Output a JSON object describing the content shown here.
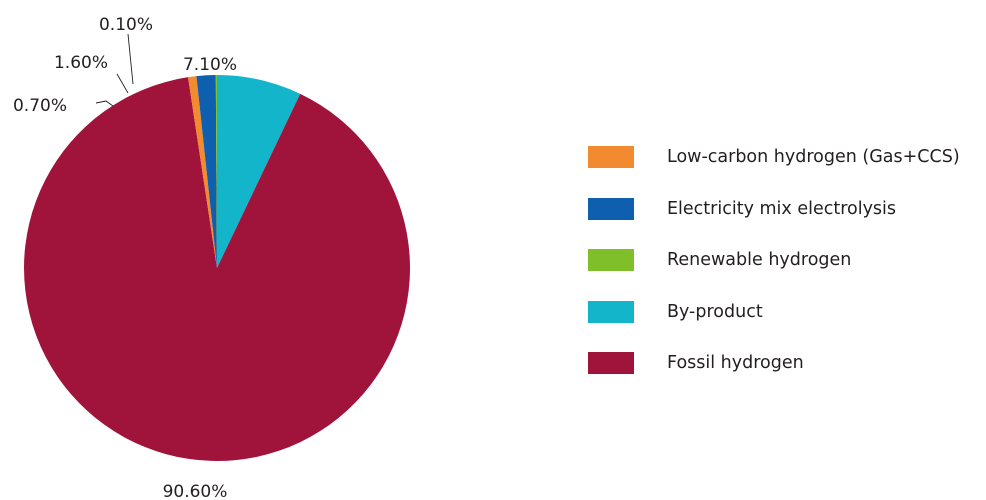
{
  "chart_data": {
    "type": "pie",
    "slices": [
      {
        "label": "By-product",
        "value": 7.1,
        "value_label": "7.10%",
        "color": "#12b5c9"
      },
      {
        "label": "Fossil hydrogen",
        "value": 90.6,
        "value_label": "90.60%",
        "color": "#a0143c"
      },
      {
        "label": "Low-carbon hydrogen (Gas+CCS)",
        "value": 0.7,
        "value_label": "0.70%",
        "color": "#f28a30"
      },
      {
        "label": "Electricity mix electrolysis",
        "value": 1.6,
        "value_label": "1.60%",
        "color": "#0e5fad"
      },
      {
        "label": "Renewable hydrogen",
        "value": 0.1,
        "value_label": "0.10%",
        "color": "#7fbf2a"
      }
    ],
    "legend": [
      {
        "label": "Low-carbon hydrogen (Gas+CCS)",
        "color": "#f28a30"
      },
      {
        "label": "Electricity mix electrolysis",
        "color": "#0e5fad"
      },
      {
        "label": "Renewable hydrogen",
        "color": "#7fbf2a"
      },
      {
        "label": "By-product",
        "color": "#12b5c9"
      },
      {
        "label": "Fossil hydrogen",
        "color": "#a0143c"
      }
    ],
    "legend_position": "right"
  }
}
